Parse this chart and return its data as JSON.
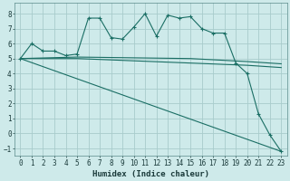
{
  "xlabel": "Humidex (Indice chaleur)",
  "background_color": "#ceeaea",
  "grid_color": "#a8cccc",
  "line_color": "#1a6e64",
  "xlim": [
    -0.5,
    23.5
  ],
  "ylim": [
    -1.5,
    8.7
  ],
  "xticks": [
    0,
    1,
    2,
    3,
    4,
    5,
    6,
    7,
    8,
    9,
    10,
    11,
    12,
    13,
    14,
    15,
    16,
    17,
    18,
    19,
    20,
    21,
    22,
    23
  ],
  "yticks": [
    -1,
    0,
    1,
    2,
    3,
    4,
    5,
    6,
    7,
    8
  ],
  "series": [
    {
      "x": [
        0,
        1,
        2,
        3,
        4,
        5,
        6,
        7,
        8,
        9,
        10,
        11,
        12,
        13,
        14,
        15,
        16,
        17,
        18,
        19,
        20,
        21,
        22,
        23
      ],
      "y": [
        5.0,
        6.0,
        5.5,
        5.5,
        5.2,
        5.3,
        7.7,
        7.7,
        6.4,
        6.3,
        7.1,
        8.0,
        6.5,
        7.9,
        7.7,
        7.8,
        7.0,
        6.7,
        6.7,
        4.7,
        4.0,
        1.3,
        -0.1,
        -1.2
      ],
      "marker": true
    },
    {
      "x": [
        0,
        5,
        10,
        15,
        20,
        21,
        22,
        23
      ],
      "y": [
        5.0,
        5.1,
        5.05,
        5.0,
        4.8,
        4.75,
        4.7,
        4.65
      ],
      "marker": false
    },
    {
      "x": [
        0,
        5,
        10,
        15,
        20,
        21,
        22,
        23
      ],
      "y": [
        5.0,
        5.0,
        4.85,
        4.7,
        4.55,
        4.5,
        4.45,
        4.4
      ],
      "marker": false
    },
    {
      "x": [
        0,
        23
      ],
      "y": [
        5.0,
        -1.2
      ],
      "marker": false
    }
  ]
}
